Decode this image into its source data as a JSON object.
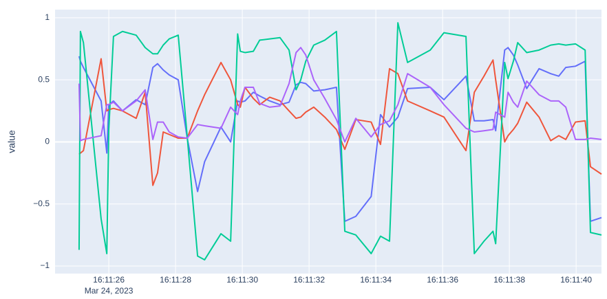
{
  "chart_data": {
    "type": "line",
    "y_label": "value",
    "x_date_label": "Mar 24, 2023",
    "x": [
      "16:11:25.11",
      "16:11:25.15",
      "16:11:25.24",
      "16:11:25.77",
      "16:11:25.94",
      "16:11:26.00",
      "16:11:26.14",
      "16:11:26.41",
      "16:11:26.82",
      "16:11:27.09",
      "16:11:27.32",
      "16:11:27.46",
      "16:11:27.63",
      "16:11:27.81",
      "16:11:28.08",
      "16:11:28.35",
      "16:11:28.66",
      "16:11:28.87",
      "16:11:29.36",
      "16:11:29.65",
      "16:11:29.86",
      "16:11:29.94",
      "16:11:30.08",
      "16:11:30.33",
      "16:11:30.52",
      "16:11:30.82",
      "16:11:31.13",
      "16:11:31.40",
      "16:11:31.61",
      "16:11:31.75",
      "16:11:31.90",
      "16:11:32.14",
      "16:11:32.47",
      "16:11:32.82",
      "16:11:33.07",
      "16:11:33.40",
      "16:11:33.86",
      "16:11:34.14",
      "16:11:34.41",
      "16:11:34.66",
      "16:11:34.95",
      "16:11:35.63",
      "16:11:36.04",
      "16:11:36.70",
      "16:11:36.95",
      "16:11:37.24",
      "16:11:37.51",
      "16:11:37.59",
      "16:11:37.86",
      "16:11:37.96",
      "16:11:38.12",
      "16:11:38.25",
      "16:11:38.52",
      "16:11:38.89",
      "16:11:39.24",
      "16:11:39.48",
      "16:11:39.69",
      "16:11:39.98",
      "16:11:40.27",
      "16:11:40.43",
      "16:11:40.76"
    ],
    "series": [
      {
        "color": "#636efa",
        "values": [
          0.69,
          0.65,
          0.6,
          0.33,
          -0.09,
          0.3,
          0.33,
          0.25,
          0.34,
          0.3,
          0.6,
          0.63,
          0.58,
          0.54,
          0.5,
          0.03,
          -0.4,
          -0.16,
          0.12,
          0.0,
          0.33,
          0.32,
          0.33,
          0.4,
          0.37,
          0.33,
          0.3,
          0.32,
          0.46,
          0.48,
          0.47,
          0.41,
          0.42,
          0.44,
          -0.64,
          -0.6,
          -0.44,
          0.22,
          0.12,
          0.2,
          0.43,
          0.44,
          0.34,
          0.53,
          0.17,
          0.17,
          0.18,
          0.09,
          0.74,
          0.76,
          0.7,
          0.62,
          0.43,
          0.59,
          0.55,
          0.53,
          0.6,
          0.61,
          0.65,
          -0.64,
          -0.61
        ]
      },
      {
        "color": "#ef553b",
        "values": [
          -0.1,
          -0.09,
          -0.07,
          0.67,
          0.25,
          0.26,
          0.27,
          0.25,
          0.19,
          0.4,
          -0.35,
          -0.25,
          0.08,
          0.06,
          0.03,
          0.03,
          0.25,
          0.38,
          0.64,
          0.5,
          0.3,
          0.28,
          0.44,
          0.35,
          0.3,
          0.36,
          0.33,
          0.25,
          0.19,
          0.2,
          0.24,
          0.28,
          0.2,
          0.1,
          -0.06,
          0.18,
          0.16,
          -0.02,
          0.59,
          0.55,
          0.33,
          0.25,
          0.2,
          -0.07,
          0.4,
          0.53,
          0.66,
          0.5,
          0.0,
          0.05,
          0.1,
          0.15,
          0.32,
          0.2,
          0.01,
          0.05,
          0.02,
          0.16,
          0.17,
          -0.2,
          -0.26
        ]
      },
      {
        "color": "#00cc96",
        "values": [
          -0.87,
          0.89,
          0.8,
          -0.62,
          -0.9,
          0.1,
          0.85,
          0.89,
          0.86,
          0.76,
          0.71,
          0.71,
          0.78,
          0.83,
          0.86,
          0.04,
          -0.92,
          -0.95,
          -0.74,
          -0.8,
          0.87,
          0.73,
          0.72,
          0.73,
          0.82,
          0.83,
          0.84,
          0.74,
          0.42,
          0.5,
          0.65,
          0.78,
          0.82,
          0.89,
          -0.72,
          -0.75,
          -0.9,
          -0.76,
          -0.8,
          0.96,
          0.64,
          0.74,
          0.88,
          0.85,
          -0.9,
          -0.8,
          -0.72,
          -0.82,
          0.64,
          0.51,
          0.65,
          0.8,
          0.72,
          0.74,
          0.78,
          0.79,
          0.78,
          0.79,
          0.74,
          -0.73,
          -0.75
        ]
      },
      {
        "color": "#ab63fa",
        "values": [
          0.47,
          0.01,
          0.02,
          0.05,
          0.3,
          0.3,
          0.32,
          0.25,
          0.33,
          0.42,
          0.02,
          0.16,
          0.16,
          0.08,
          0.04,
          0.03,
          0.14,
          0.13,
          0.11,
          0.28,
          0.22,
          0.33,
          0.44,
          0.44,
          0.31,
          0.28,
          0.29,
          0.47,
          0.72,
          0.76,
          0.7,
          0.5,
          0.35,
          0.18,
          0.0,
          0.19,
          0.04,
          0.14,
          0.17,
          0.3,
          0.55,
          0.44,
          0.3,
          0.11,
          0.08,
          0.09,
          0.1,
          0.24,
          0.2,
          0.4,
          0.32,
          0.28,
          0.49,
          0.38,
          0.33,
          0.33,
          0.28,
          0.02,
          0.02,
          0.03,
          0.02
        ]
      }
    ],
    "xlim": [
      "16:11:24.39",
      "16:11:40.76"
    ],
    "xticks": [
      "16:11:26",
      "16:11:28",
      "16:11:30",
      "16:11:32",
      "16:11:34",
      "16:11:36",
      "16:11:38",
      "16:11:40"
    ],
    "ylim": [
      -1.061,
      1.066
    ],
    "yticks": [
      {
        "value": -1,
        "label": "−1"
      },
      {
        "value": -0.5,
        "label": "−0.5"
      },
      0,
      0.5,
      1
    ],
    "grid": true
  }
}
